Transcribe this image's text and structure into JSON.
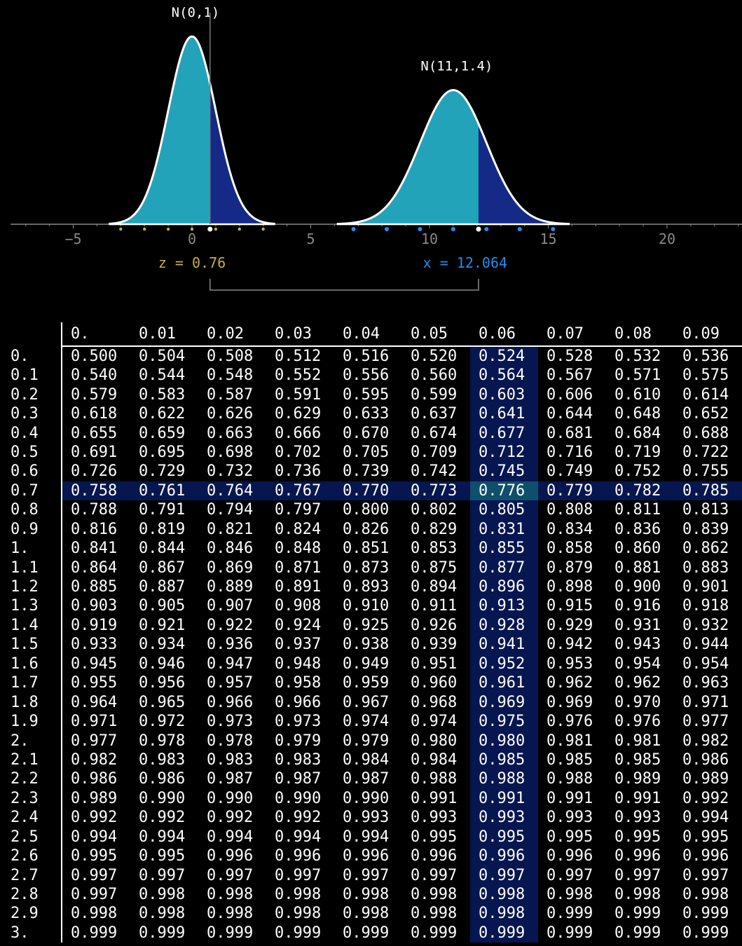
{
  "chart_data": [
    {
      "type": "area",
      "title": "",
      "xlabel": "",
      "ylabel": "",
      "xlim": [
        -7.5,
        23.5
      ],
      "x_ticks": [
        -5,
        0,
        5,
        10,
        15,
        20
      ],
      "grid": false,
      "distributions": [
        {
          "name": "N(0,1)",
          "mean": 0,
          "sd": 1,
          "cutoff": 0.76,
          "range": [
            -3.5,
            3.5
          ]
        },
        {
          "name": "N(11,1.4)",
          "mean": 11,
          "sd": 1.4,
          "cutoff": 12.064,
          "range": [
            6.1,
            15.9
          ]
        }
      ],
      "sd_markers": {
        "N(0,1)": [
          -3,
          -2,
          -1,
          0,
          1,
          2,
          3
        ],
        "N(11,1.4)": [
          6.8,
          8.2,
          9.6,
          11,
          12.4,
          13.8,
          15.2
        ]
      },
      "annotations": {
        "z_label": "z = 0.76",
        "x_label": "x = 12.064"
      },
      "colors": {
        "fill_left": "#23a3b9",
        "fill_right": "#142a86",
        "curve": "#ffffff",
        "z_color": "#c8b040",
        "x_color": "#1f8ff0",
        "axis": "#888888"
      }
    },
    {
      "type": "table",
      "columns": [
        "0.",
        "0.01",
        "0.02",
        "0.03",
        "0.04",
        "0.05",
        "0.06",
        "0.07",
        "0.08",
        "0.09"
      ],
      "highlight": {
        "row": "0.7",
        "column": "0.06",
        "value": "0.776",
        "colors": {
          "band": "#061650",
          "cell": "#0e4f6b"
        }
      },
      "rows": [
        {
          "label": "0.",
          "values": [
            "0.500",
            "0.504",
            "0.508",
            "0.512",
            "0.516",
            "0.520",
            "0.524",
            "0.528",
            "0.532",
            "0.536"
          ]
        },
        {
          "label": "0.1",
          "values": [
            "0.540",
            "0.544",
            "0.548",
            "0.552",
            "0.556",
            "0.560",
            "0.564",
            "0.567",
            "0.571",
            "0.575"
          ]
        },
        {
          "label": "0.2",
          "values": [
            "0.579",
            "0.583",
            "0.587",
            "0.591",
            "0.595",
            "0.599",
            "0.603",
            "0.606",
            "0.610",
            "0.614"
          ]
        },
        {
          "label": "0.3",
          "values": [
            "0.618",
            "0.622",
            "0.626",
            "0.629",
            "0.633",
            "0.637",
            "0.641",
            "0.644",
            "0.648",
            "0.652"
          ]
        },
        {
          "label": "0.4",
          "values": [
            "0.655",
            "0.659",
            "0.663",
            "0.666",
            "0.670",
            "0.674",
            "0.677",
            "0.681",
            "0.684",
            "0.688"
          ]
        },
        {
          "label": "0.5",
          "values": [
            "0.691",
            "0.695",
            "0.698",
            "0.702",
            "0.705",
            "0.709",
            "0.712",
            "0.716",
            "0.719",
            "0.722"
          ]
        },
        {
          "label": "0.6",
          "values": [
            "0.726",
            "0.729",
            "0.732",
            "0.736",
            "0.739",
            "0.742",
            "0.745",
            "0.749",
            "0.752",
            "0.755"
          ]
        },
        {
          "label": "0.7",
          "values": [
            "0.758",
            "0.761",
            "0.764",
            "0.767",
            "0.770",
            "0.773",
            "0.776",
            "0.779",
            "0.782",
            "0.785"
          ]
        },
        {
          "label": "0.8",
          "values": [
            "0.788",
            "0.791",
            "0.794",
            "0.797",
            "0.800",
            "0.802",
            "0.805",
            "0.808",
            "0.811",
            "0.813"
          ]
        },
        {
          "label": "0.9",
          "values": [
            "0.816",
            "0.819",
            "0.821",
            "0.824",
            "0.826",
            "0.829",
            "0.831",
            "0.834",
            "0.836",
            "0.839"
          ]
        },
        {
          "label": "1.",
          "values": [
            "0.841",
            "0.844",
            "0.846",
            "0.848",
            "0.851",
            "0.853",
            "0.855",
            "0.858",
            "0.860",
            "0.862"
          ]
        },
        {
          "label": "1.1",
          "values": [
            "0.864",
            "0.867",
            "0.869",
            "0.871",
            "0.873",
            "0.875",
            "0.877",
            "0.879",
            "0.881",
            "0.883"
          ]
        },
        {
          "label": "1.2",
          "values": [
            "0.885",
            "0.887",
            "0.889",
            "0.891",
            "0.893",
            "0.894",
            "0.896",
            "0.898",
            "0.900",
            "0.901"
          ]
        },
        {
          "label": "1.3",
          "values": [
            "0.903",
            "0.905",
            "0.907",
            "0.908",
            "0.910",
            "0.911",
            "0.913",
            "0.915",
            "0.916",
            "0.918"
          ]
        },
        {
          "label": "1.4",
          "values": [
            "0.919",
            "0.921",
            "0.922",
            "0.924",
            "0.925",
            "0.926",
            "0.928",
            "0.929",
            "0.931",
            "0.932"
          ]
        },
        {
          "label": "1.5",
          "values": [
            "0.933",
            "0.934",
            "0.936",
            "0.937",
            "0.938",
            "0.939",
            "0.941",
            "0.942",
            "0.943",
            "0.944"
          ]
        },
        {
          "label": "1.6",
          "values": [
            "0.945",
            "0.946",
            "0.947",
            "0.948",
            "0.949",
            "0.951",
            "0.952",
            "0.953",
            "0.954",
            "0.954"
          ]
        },
        {
          "label": "1.7",
          "values": [
            "0.955",
            "0.956",
            "0.957",
            "0.958",
            "0.959",
            "0.960",
            "0.961",
            "0.962",
            "0.962",
            "0.963"
          ]
        },
        {
          "label": "1.8",
          "values": [
            "0.964",
            "0.965",
            "0.966",
            "0.966",
            "0.967",
            "0.968",
            "0.969",
            "0.969",
            "0.970",
            "0.971"
          ]
        },
        {
          "label": "1.9",
          "values": [
            "0.971",
            "0.972",
            "0.973",
            "0.973",
            "0.974",
            "0.974",
            "0.975",
            "0.976",
            "0.976",
            "0.977"
          ]
        },
        {
          "label": "2.",
          "values": [
            "0.977",
            "0.978",
            "0.978",
            "0.979",
            "0.979",
            "0.980",
            "0.980",
            "0.981",
            "0.981",
            "0.982"
          ]
        },
        {
          "label": "2.1",
          "values": [
            "0.982",
            "0.983",
            "0.983",
            "0.983",
            "0.984",
            "0.984",
            "0.985",
            "0.985",
            "0.985",
            "0.986"
          ]
        },
        {
          "label": "2.2",
          "values": [
            "0.986",
            "0.986",
            "0.987",
            "0.987",
            "0.987",
            "0.988",
            "0.988",
            "0.988",
            "0.989",
            "0.989"
          ]
        },
        {
          "label": "2.3",
          "values": [
            "0.989",
            "0.990",
            "0.990",
            "0.990",
            "0.990",
            "0.991",
            "0.991",
            "0.991",
            "0.991",
            "0.992"
          ]
        },
        {
          "label": "2.4",
          "values": [
            "0.992",
            "0.992",
            "0.992",
            "0.992",
            "0.993",
            "0.993",
            "0.993",
            "0.993",
            "0.993",
            "0.994"
          ]
        },
        {
          "label": "2.5",
          "values": [
            "0.994",
            "0.994",
            "0.994",
            "0.994",
            "0.994",
            "0.995",
            "0.995",
            "0.995",
            "0.995",
            "0.995"
          ]
        },
        {
          "label": "2.6",
          "values": [
            "0.995",
            "0.995",
            "0.996",
            "0.996",
            "0.996",
            "0.996",
            "0.996",
            "0.996",
            "0.996",
            "0.996"
          ]
        },
        {
          "label": "2.7",
          "values": [
            "0.997",
            "0.997",
            "0.997",
            "0.997",
            "0.997",
            "0.997",
            "0.997",
            "0.997",
            "0.997",
            "0.997"
          ]
        },
        {
          "label": "2.8",
          "values": [
            "0.997",
            "0.998",
            "0.998",
            "0.998",
            "0.998",
            "0.998",
            "0.998",
            "0.998",
            "0.998",
            "0.998"
          ]
        },
        {
          "label": "2.9",
          "values": [
            "0.998",
            "0.998",
            "0.998",
            "0.998",
            "0.998",
            "0.998",
            "0.998",
            "0.999",
            "0.999",
            "0.999"
          ]
        },
        {
          "label": "3.",
          "values": [
            "0.999",
            "0.999",
            "0.999",
            "0.999",
            "0.999",
            "0.999",
            "0.999",
            "0.999",
            "0.999",
            "0.999"
          ]
        }
      ]
    }
  ]
}
